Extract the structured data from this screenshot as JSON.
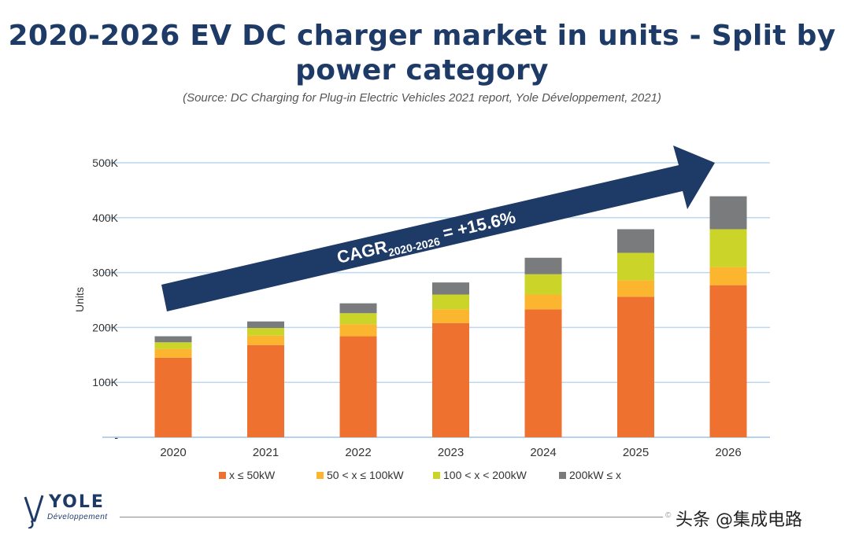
{
  "title": "2020-2026 EV DC charger market in units - Split by power category",
  "source": "(Source: DC Charging for Plug-in Electric Vehicles 2021 report, Yole Développement, 2021)",
  "chart_data": {
    "type": "bar",
    "stacked": true,
    "categories": [
      "2020",
      "2021",
      "2022",
      "2023",
      "2024",
      "2025",
      "2026"
    ],
    "ylabel": "Units",
    "ylim": [
      0,
      500000
    ],
    "yticks": [
      {
        "value": 0,
        "label": "-"
      },
      {
        "value": 100000,
        "label": "100K"
      },
      {
        "value": 200000,
        "label": "200K"
      },
      {
        "value": 300000,
        "label": "300K"
      },
      {
        "value": 400000,
        "label": "400K"
      },
      {
        "value": 500000,
        "label": "500K"
      }
    ],
    "grid": true,
    "legend_position": "bottom",
    "series": [
      {
        "name": "x ≤ 50kW",
        "color": "#ee7130",
        "values": [
          145000,
          168000,
          184000,
          208000,
          233000,
          256000,
          277000
        ]
      },
      {
        "name": "50 < x ≤ 100kW",
        "color": "#fbb52e",
        "values": [
          16000,
          17000,
          22000,
          25000,
          27000,
          30000,
          33000
        ]
      },
      {
        "name": "100 < x < 200kW",
        "color": "#cbd529",
        "values": [
          12000,
          14000,
          20000,
          27000,
          37000,
          50000,
          69000
        ]
      },
      {
        "name": "200kW ≤ x",
        "color": "#7a7b7d",
        "values": [
          11000,
          12000,
          18000,
          22000,
          30000,
          43000,
          60000
        ]
      }
    ],
    "annotation": {
      "prefix": "CAGR",
      "subscript": "2020-2026",
      "suffix": " = +15.6%",
      "color": "#1e3a66"
    }
  },
  "logo": {
    "name": "YOLE",
    "sub": "Développement"
  },
  "watermark": {
    "text": "头条 @集成电路",
    "small": "©"
  }
}
